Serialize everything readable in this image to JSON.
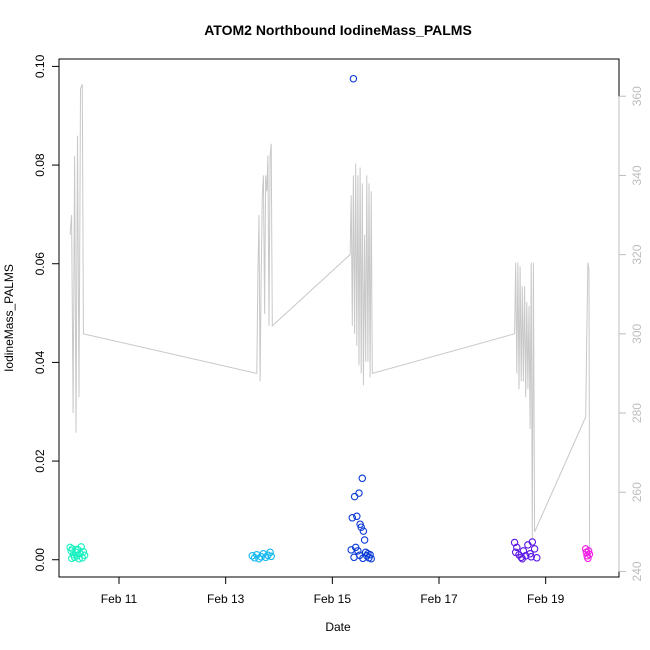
{
  "chart_data": {
    "type": "scatter",
    "title": "ATOM2 Northbound IodineMass_PALMS",
    "xlabel": "Date",
    "ylabel": "IodineMass_PALMS",
    "xlim": [
      "2017-02-09 21:00",
      "2017-02-20 09:00"
    ],
    "ylim": [
      -0.0035,
      0.1015
    ],
    "y_ticks": [
      0.0,
      0.02,
      0.04,
      0.06,
      0.08,
      0.1
    ],
    "y_tick_labels": [
      "0.00",
      "0.02",
      "0.04",
      "0.06",
      "0.08",
      "0.10"
    ],
    "x_ticks": [
      "2017-02-11",
      "2017-02-13",
      "2017-02-15",
      "2017-02-17",
      "2017-02-19"
    ],
    "x_tick_labels": [
      "Feb 11",
      "Feb 13",
      "Feb 15",
      "Feb 17",
      "Feb 19"
    ],
    "y2_ticks": [
      240,
      260,
      280,
      300,
      320,
      340,
      360
    ],
    "y2_ticks_labels": [
      "240",
      "260",
      "280",
      "300",
      "320",
      "340",
      "360"
    ],
    "y2lim": [
      238.6,
      369.4
    ],
    "grid": false,
    "series": [
      {
        "color": "#19f0c0",
        "points": [
          [
            "2017-02-10 02:00",
            0.0025
          ],
          [
            "2017-02-10 02:30",
            0.0018
          ],
          [
            "2017-02-10 03:00",
            0.0022
          ],
          [
            "2017-02-10 03:30",
            0.001
          ],
          [
            "2017-02-10 04:00",
            0.0005
          ],
          [
            "2017-02-10 04:30",
            0.0015
          ],
          [
            "2017-02-10 05:00",
            0.0008
          ],
          [
            "2017-02-10 05:30",
            0.002
          ],
          [
            "2017-02-10 06:00",
            0.0002
          ],
          [
            "2017-02-10 06:30",
            0.0012
          ],
          [
            "2017-02-10 07:00",
            0.0026
          ],
          [
            "2017-02-10 07:30",
            0.0004
          ],
          [
            "2017-02-10 08:00",
            0.0016
          ],
          [
            "2017-02-10 08:30",
            0.0009
          ],
          [
            "2017-02-10 02:45",
            0.0003
          ],
          [
            "2017-02-10 05:15",
            0.0021
          ]
        ]
      },
      {
        "color": "#14b8f0",
        "points": [
          [
            "2017-02-13 12:00",
            0.0008
          ],
          [
            "2017-02-13 13:00",
            0.0004
          ],
          [
            "2017-02-13 14:00",
            0.001
          ],
          [
            "2017-02-13 15:00",
            0.0002
          ],
          [
            "2017-02-13 16:00",
            0.0006
          ],
          [
            "2017-02-13 17:00",
            0.0012
          ],
          [
            "2017-02-13 18:00",
            0.0005
          ],
          [
            "2017-02-13 19:00",
            0.0009
          ],
          [
            "2017-02-13 20:00",
            0.0015
          ],
          [
            "2017-02-13 20:30",
            0.0007
          ]
        ]
      },
      {
        "color": "#0a3ad6",
        "points": [
          [
            "2017-02-15 09:30",
            0.0975
          ],
          [
            "2017-02-15 13:30",
            0.0165
          ],
          [
            "2017-02-15 12:00",
            0.0135
          ],
          [
            "2017-02-15 10:00",
            0.0128
          ],
          [
            "2017-02-15 09:00",
            0.0085
          ],
          [
            "2017-02-15 11:00",
            0.0088
          ],
          [
            "2017-02-15 12:30",
            0.0072
          ],
          [
            "2017-02-15 13:00",
            0.0066
          ],
          [
            "2017-02-15 14:00",
            0.0058
          ],
          [
            "2017-02-15 14:30",
            0.004
          ],
          [
            "2017-02-15 10:30",
            0.0025
          ],
          [
            "2017-02-15 11:30",
            0.0018
          ],
          [
            "2017-02-15 15:00",
            0.0015
          ],
          [
            "2017-02-15 15:30",
            0.0008
          ],
          [
            "2017-02-15 16:00",
            0.0012
          ],
          [
            "2017-02-15 16:30",
            0.0004
          ],
          [
            "2017-02-15 17:00",
            0.001
          ],
          [
            "2017-02-15 17:30",
            0.0002
          ],
          [
            "2017-02-15 08:30",
            0.002
          ],
          [
            "2017-02-15 09:45",
            0.0005
          ],
          [
            "2017-02-15 12:15",
            0.0009
          ],
          [
            "2017-02-15 13:45",
            0.0003
          ]
        ]
      },
      {
        "color": "#5a14e6",
        "points": [
          [
            "2017-02-18 10:00",
            0.0035
          ],
          [
            "2017-02-18 11:00",
            0.0025
          ],
          [
            "2017-02-18 12:00",
            0.001
          ],
          [
            "2017-02-18 13:00",
            0.0005
          ],
          [
            "2017-02-18 14:00",
            0.0018
          ],
          [
            "2017-02-18 15:00",
            0.0008
          ],
          [
            "2017-02-18 16:00",
            0.003
          ],
          [
            "2017-02-18 17:00",
            0.0012
          ],
          [
            "2017-02-18 18:00",
            0.0036
          ],
          [
            "2017-02-18 19:00",
            0.0022
          ],
          [
            "2017-02-18 20:00",
            0.0004
          ],
          [
            "2017-02-18 10:30",
            0.0015
          ],
          [
            "2017-02-18 13:30",
            0.0002
          ],
          [
            "2017-02-18 17:30",
            0.0006
          ]
        ]
      },
      {
        "color": "#f01ae6",
        "points": [
          [
            "2017-02-19 18:00",
            0.0022
          ],
          [
            "2017-02-19 18:20",
            0.0015
          ],
          [
            "2017-02-19 18:40",
            0.0008
          ],
          [
            "2017-02-19 19:00",
            0.0003
          ],
          [
            "2017-02-19 19:20",
            0.0018
          ],
          [
            "2017-02-19 19:40",
            0.0011
          ]
        ]
      }
    ],
    "line_series": {
      "axis": "right",
      "color": "#c8c8c8",
      "points": [
        [
          "2017-02-10 02:00",
          325
        ],
        [
          "2017-02-10 02:40",
          330
        ],
        [
          "2017-02-10 03:20",
          280
        ],
        [
          "2017-02-10 04:00",
          345
        ],
        [
          "2017-02-10 04:40",
          275
        ],
        [
          "2017-02-10 05:20",
          350
        ],
        [
          "2017-02-10 06:00",
          284
        ],
        [
          "2017-02-10 06:40",
          362
        ],
        [
          "2017-02-10 07:30",
          363
        ],
        [
          "2017-02-10 08:00",
          300
        ],
        [
          "2017-02-13 14:00",
          290
        ],
        [
          "2017-02-13 14:30",
          315
        ],
        [
          "2017-02-13 15:00",
          330
        ],
        [
          "2017-02-13 15:30",
          288
        ],
        [
          "2017-02-13 16:00",
          315
        ],
        [
          "2017-02-13 16:30",
          335
        ],
        [
          "2017-02-13 17:00",
          340
        ],
        [
          "2017-02-13 17:30",
          305
        ],
        [
          "2017-02-13 18:00",
          340
        ],
        [
          "2017-02-13 18:30",
          336
        ],
        [
          "2017-02-13 19:00",
          345
        ],
        [
          "2017-02-13 19:30",
          302
        ],
        [
          "2017-02-13 20:00",
          345
        ],
        [
          "2017-02-13 20:30",
          348
        ],
        [
          "2017-02-13 21:00",
          302
        ],
        [
          "2017-02-15 08:00",
          320
        ],
        [
          "2017-02-15 08:30",
          335
        ],
        [
          "2017-02-15 09:00",
          302
        ],
        [
          "2017-02-15 09:30",
          340
        ],
        [
          "2017-02-15 10:00",
          300
        ],
        [
          "2017-02-15 10:30",
          343
        ],
        [
          "2017-02-15 11:00",
          297
        ],
        [
          "2017-02-15 11:30",
          340
        ],
        [
          "2017-02-15 12:00",
          292
        ],
        [
          "2017-02-15 12:30",
          342
        ],
        [
          "2017-02-15 13:00",
          290
        ],
        [
          "2017-02-15 13:30",
          338
        ],
        [
          "2017-02-15 14:00",
          287
        ],
        [
          "2017-02-15 14:30",
          325
        ],
        [
          "2017-02-15 15:00",
          293
        ],
        [
          "2017-02-15 15:30",
          340
        ],
        [
          "2017-02-15 16:00",
          293
        ],
        [
          "2017-02-15 16:30",
          338
        ],
        [
          "2017-02-15 17:00",
          289
        ],
        [
          "2017-02-15 17:30",
          336
        ],
        [
          "2017-02-15 18:00",
          290
        ],
        [
          "2017-02-18 10:00",
          300
        ],
        [
          "2017-02-18 10:30",
          318
        ],
        [
          "2017-02-18 11:00",
          290
        ],
        [
          "2017-02-18 11:30",
          318
        ],
        [
          "2017-02-18 12:00",
          286
        ],
        [
          "2017-02-18 12:30",
          317
        ],
        [
          "2017-02-18 13:00",
          288
        ],
        [
          "2017-02-18 13:30",
          312
        ],
        [
          "2017-02-18 14:00",
          288
        ],
        [
          "2017-02-18 14:30",
          312
        ],
        [
          "2017-02-18 15:00",
          284
        ],
        [
          "2017-02-18 15:30",
          308
        ],
        [
          "2017-02-18 16:00",
          286
        ],
        [
          "2017-02-18 16:30",
          307
        ],
        [
          "2017-02-18 17:00",
          276
        ],
        [
          "2017-02-18 17:30",
          318
        ],
        [
          "2017-02-18 18:00",
          248
        ],
        [
          "2017-02-18 18:30",
          318
        ],
        [
          "2017-02-18 19:00",
          250
        ],
        [
          "2017-02-19 18:00",
          279
        ],
        [
          "2017-02-19 18:30",
          300
        ],
        [
          "2017-02-19 19:00",
          318
        ],
        [
          "2017-02-19 19:30",
          316
        ],
        [
          "2017-02-19 19:45",
          243
        ]
      ]
    }
  }
}
